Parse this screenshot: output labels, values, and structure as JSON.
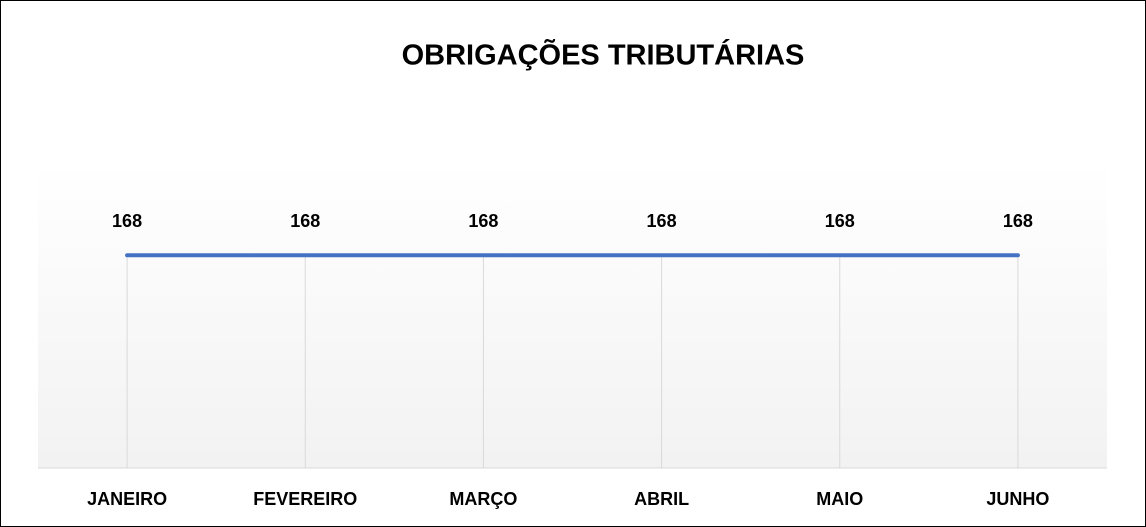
{
  "chart_data": {
    "type": "line",
    "title": "OBRIGAÇÕES TRIBUTÁRIAS",
    "categories": [
      "JANEIRO",
      "FEVEREIRO",
      "MARÇO",
      "ABRIL",
      "MAIO",
      "JUNHO"
    ],
    "values": [
      168,
      168,
      168,
      168,
      168,
      168
    ],
    "color": "#4472c4",
    "ylim": [
      0,
      240
    ],
    "xgrid": true
  }
}
